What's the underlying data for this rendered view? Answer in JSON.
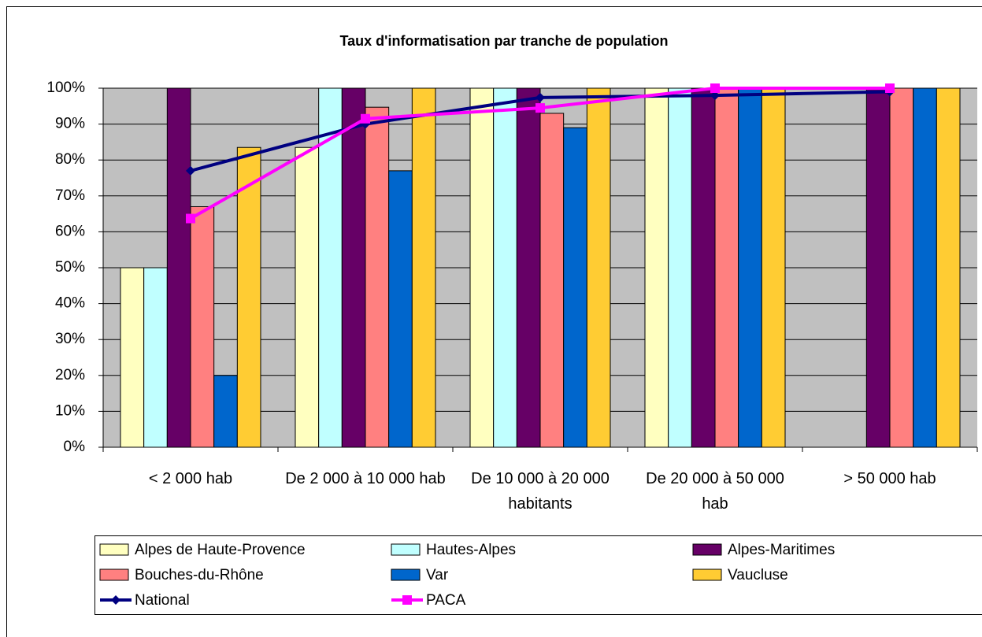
{
  "chart_data": {
    "type": "bar",
    "title": "Taux d'informatisation par tranche de population",
    "categories": [
      "< 2 000 hab",
      "De 2 000 à 10 000 hab",
      "De 10 000 à 20 000 habitants",
      "De 20 000 à 50 000 hab",
      "> 50 000 hab"
    ],
    "series": [
      {
        "name": "Alpes de Haute-Provence",
        "color": "#ffffc0",
        "values": [
          50,
          83.5,
          100,
          100,
          null
        ]
      },
      {
        "name": "Hautes-Alpes",
        "color": "#c0ffff",
        "values": [
          50,
          100,
          100,
          100,
          null
        ]
      },
      {
        "name": "Alpes-Maritimes",
        "color": "#660066",
        "values": [
          100,
          100,
          100,
          100,
          100
        ]
      },
      {
        "name": "Bouches-du-Rhône",
        "color": "#ff8080",
        "values": [
          67,
          94.7,
          93,
          100,
          100
        ]
      },
      {
        "name": "Var",
        "color": "#0066cc",
        "values": [
          20,
          77,
          89,
          100,
          100
        ]
      },
      {
        "name": "Vaucluse",
        "color": "#ffcc33",
        "values": [
          83.5,
          100,
          100,
          100,
          100
        ]
      },
      {
        "name": "National",
        "color": "#000080",
        "type": "line",
        "marker": "diamond",
        "values": [
          77,
          90,
          97.4,
          98,
          99
        ]
      },
      {
        "name": "PACA",
        "color": "#ff00ff",
        "type": "line",
        "marker": "square",
        "values": [
          63.7,
          91.5,
          94.5,
          100,
          100
        ]
      }
    ],
    "ylim": [
      0,
      100
    ],
    "yticks": [
      {
        "value": 0,
        "label": "0%"
      },
      {
        "value": 10,
        "label": "10%"
      },
      {
        "value": 20,
        "label": "20%"
      },
      {
        "value": 30,
        "label": "30%"
      },
      {
        "value": 40,
        "label": "40%"
      },
      {
        "value": 50,
        "label": "50%"
      },
      {
        "value": 60,
        "label": "60%"
      },
      {
        "value": 70,
        "label": "70%"
      },
      {
        "value": 80,
        "label": "80%"
      },
      {
        "value": 90,
        "label": "90%"
      },
      {
        "value": 100,
        "label": "100%"
      }
    ],
    "grid": true,
    "legend": "bottom"
  }
}
